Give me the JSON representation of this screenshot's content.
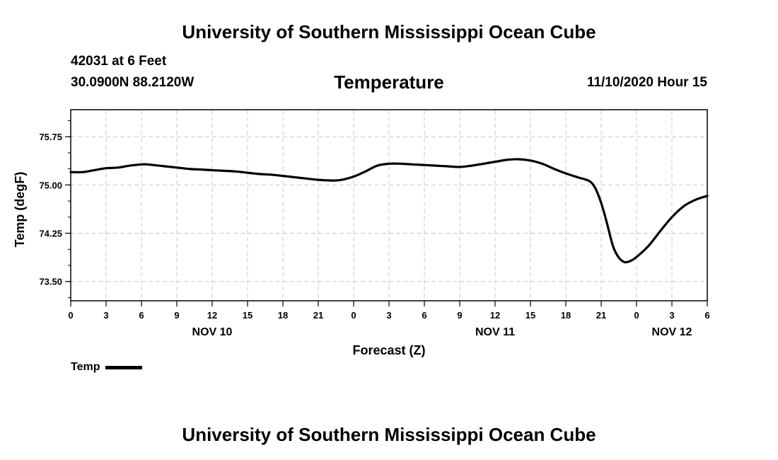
{
  "page": {
    "title_top": "University of Southern Mississippi Ocean Cube",
    "title_bottom": "University of Southern Mississippi Ocean Cube",
    "station": "42031 at 6 Feet",
    "coordinates": "30.0900N 88.2120W",
    "datetime": "11/10/2020 Hour 15"
  },
  "chart_data": {
    "type": "line",
    "title": "Temperature",
    "xlabel": "Forecast (Z)",
    "ylabel": "Temp (degF)",
    "x_units": "hours from 11/10/2020 00Z",
    "xlim": [
      0,
      54
    ],
    "ylim": [
      73.2,
      76.17
    ],
    "x_ticks": [
      {
        "x": 0,
        "label": "0"
      },
      {
        "x": 3,
        "label": "3"
      },
      {
        "x": 6,
        "label": "6"
      },
      {
        "x": 9,
        "label": "9"
      },
      {
        "x": 12,
        "label": "12"
      },
      {
        "x": 15,
        "label": "15"
      },
      {
        "x": 18,
        "label": "18"
      },
      {
        "x": 21,
        "label": "21"
      },
      {
        "x": 24,
        "label": "0"
      },
      {
        "x": 27,
        "label": "3"
      },
      {
        "x": 30,
        "label": "6"
      },
      {
        "x": 33,
        "label": "9"
      },
      {
        "x": 36,
        "label": "12"
      },
      {
        "x": 39,
        "label": "15"
      },
      {
        "x": 42,
        "label": "18"
      },
      {
        "x": 45,
        "label": "21"
      },
      {
        "x": 48,
        "label": "0"
      },
      {
        "x": 51,
        "label": "3"
      },
      {
        "x": 54,
        "label": "6"
      }
    ],
    "date_labels": [
      {
        "x": 12,
        "label": "NOV 10"
      },
      {
        "x": 36,
        "label": "NOV 11"
      },
      {
        "x": 51,
        "label": "NOV 12"
      }
    ],
    "y_ticks": [
      {
        "y": 73.5,
        "label": "73.50"
      },
      {
        "y": 74.25,
        "label": "74.25"
      },
      {
        "y": 75.0,
        "label": "75.00"
      },
      {
        "y": 75.75,
        "label": "75.75"
      }
    ],
    "grid": true,
    "legend_position": "bottom-left",
    "series": [
      {
        "name": "Temp",
        "color": "#000000",
        "x": [
          0,
          1,
          2,
          3,
          4,
          5,
          6,
          6.5,
          7,
          8,
          9,
          10,
          11,
          12,
          13,
          14,
          15,
          16,
          17,
          18,
          19,
          20,
          21,
          22,
          22.5,
          23,
          24,
          25,
          26,
          27,
          28,
          29,
          30,
          31,
          32,
          33,
          34,
          35,
          36,
          37,
          38,
          39,
          40,
          41,
          42,
          43,
          44,
          44.5,
          45,
          45.5,
          46,
          46.5,
          47,
          47.5,
          48,
          49,
          50,
          51,
          52,
          53,
          54
        ],
        "y": [
          75.2,
          75.2,
          75.23,
          75.26,
          75.27,
          75.3,
          75.32,
          75.32,
          75.31,
          75.29,
          75.27,
          75.25,
          75.24,
          75.23,
          75.22,
          75.21,
          75.19,
          75.17,
          75.16,
          75.14,
          75.12,
          75.1,
          75.08,
          75.07,
          75.07,
          75.08,
          75.13,
          75.21,
          75.3,
          75.33,
          75.33,
          75.32,
          75.31,
          75.3,
          75.29,
          75.28,
          75.3,
          75.33,
          75.36,
          75.39,
          75.4,
          75.38,
          75.33,
          75.25,
          75.18,
          75.12,
          75.06,
          74.95,
          74.72,
          74.4,
          74.05,
          73.87,
          73.8,
          73.82,
          73.88,
          74.05,
          74.28,
          74.5,
          74.67,
          74.77,
          74.83
        ]
      }
    ]
  }
}
